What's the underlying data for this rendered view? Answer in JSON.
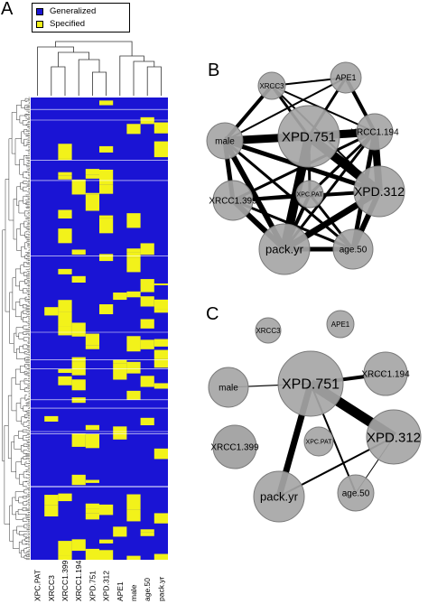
{
  "panels": {
    "a": "A",
    "b": "B",
    "c": "C"
  },
  "legend": {
    "items": [
      {
        "label": "Generalized",
        "color": "#1a14d4"
      },
      {
        "label": "Specified",
        "color": "#f2f21a"
      }
    ]
  },
  "heatmap": {
    "columns": [
      "XPC.PAT",
      "XRCC3",
      "XRCC1.399",
      "XRCC1.194",
      "XPD.751",
      "XPD.312",
      "APE1",
      "male",
      "age.50",
      "pack.yr"
    ]
  },
  "network_b": {
    "nodes": [
      {
        "id": "XRCC3",
        "label": "XRCC3"
      },
      {
        "id": "APE1",
        "label": "APE1"
      },
      {
        "id": "male",
        "label": "male"
      },
      {
        "id": "XPD.751",
        "label": "XPD.751"
      },
      {
        "id": "XRCC1.194",
        "label": "XRCC1.194"
      },
      {
        "id": "XPC.PAT",
        "label": "XPC.PAT"
      },
      {
        "id": "XRCC1.399",
        "label": "XRCC1.399"
      },
      {
        "id": "XPD.312",
        "label": "XPD.312"
      },
      {
        "id": "pack.yr",
        "label": "pack.yr"
      },
      {
        "id": "age.50",
        "label": "age.50"
      }
    ]
  },
  "network_c": {
    "nodes": [
      {
        "id": "XRCC3",
        "label": "XRCC3"
      },
      {
        "id": "APE1",
        "label": "APE1"
      },
      {
        "id": "male",
        "label": "male"
      },
      {
        "id": "XPD.751",
        "label": "XPD.751"
      },
      {
        "id": "XRCC1.194",
        "label": "XRCC1.194"
      },
      {
        "id": "XPC.PAT",
        "label": "XPC.PAT"
      },
      {
        "id": "XRCC1.399",
        "label": "XRCC1.399"
      },
      {
        "id": "XPD.312",
        "label": "XPD.312"
      },
      {
        "id": "pack.yr",
        "label": "pack.yr"
      },
      {
        "id": "age.50",
        "label": "age.50"
      }
    ]
  }
}
